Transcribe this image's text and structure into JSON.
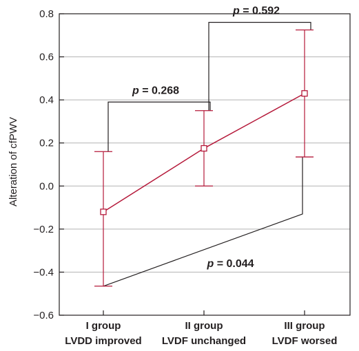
{
  "chart_data": {
    "type": "line",
    "title": "",
    "xlabel": "",
    "ylabel": "Alteration of cfPWV",
    "ylim": [
      -0.6,
      0.8
    ],
    "yticks": [
      {
        "value": 0.8,
        "label": "0.8"
      },
      {
        "value": 0.6,
        "label": "0.6"
      },
      {
        "value": 0.4,
        "label": "0.4"
      },
      {
        "value": 0.2,
        "label": "0.2"
      },
      {
        "value": 0.0,
        "label": "0.0"
      },
      {
        "value": -0.2,
        "label": "−0.2"
      },
      {
        "value": -0.4,
        "label": "−0.4"
      },
      {
        "value": -0.6,
        "label": "−0.6"
      }
    ],
    "grid": true,
    "categories": [
      {
        "line1": "I group",
        "line2": "LVDD improved"
      },
      {
        "line1": "II group",
        "line2": "LVDF unchanged"
      },
      {
        "line1": "III group",
        "line2": "LVDF worsed"
      }
    ],
    "series": [
      {
        "color": "#b5193a",
        "marker": "open-square",
        "values": [
          -0.12,
          0.175,
          0.43
        ],
        "error_low": [
          -0.465,
          0.0,
          0.135
        ],
        "error_high": [
          0.16,
          0.35,
          0.725
        ]
      }
    ],
    "comparisons": [
      {
        "label_italic": "p",
        "label_rest": " = 0.268",
        "between": [
          0,
          1
        ],
        "y_bracket": 0.39,
        "side": "above"
      },
      {
        "label_italic": "p",
        "label_rest": " = 0.592",
        "between": [
          1,
          2
        ],
        "y_bracket": 0.76,
        "side": "above"
      },
      {
        "label_italic": "p",
        "label_rest": " = 0.044",
        "between": [
          0,
          2
        ],
        "y_end_left": -0.465,
        "y_end_right": -0.13,
        "side": "below"
      }
    ],
    "colors": {
      "series": "#b5193a",
      "annotation": "#231f20",
      "grid": "#b3b3b3",
      "axis": "#231f20"
    }
  }
}
